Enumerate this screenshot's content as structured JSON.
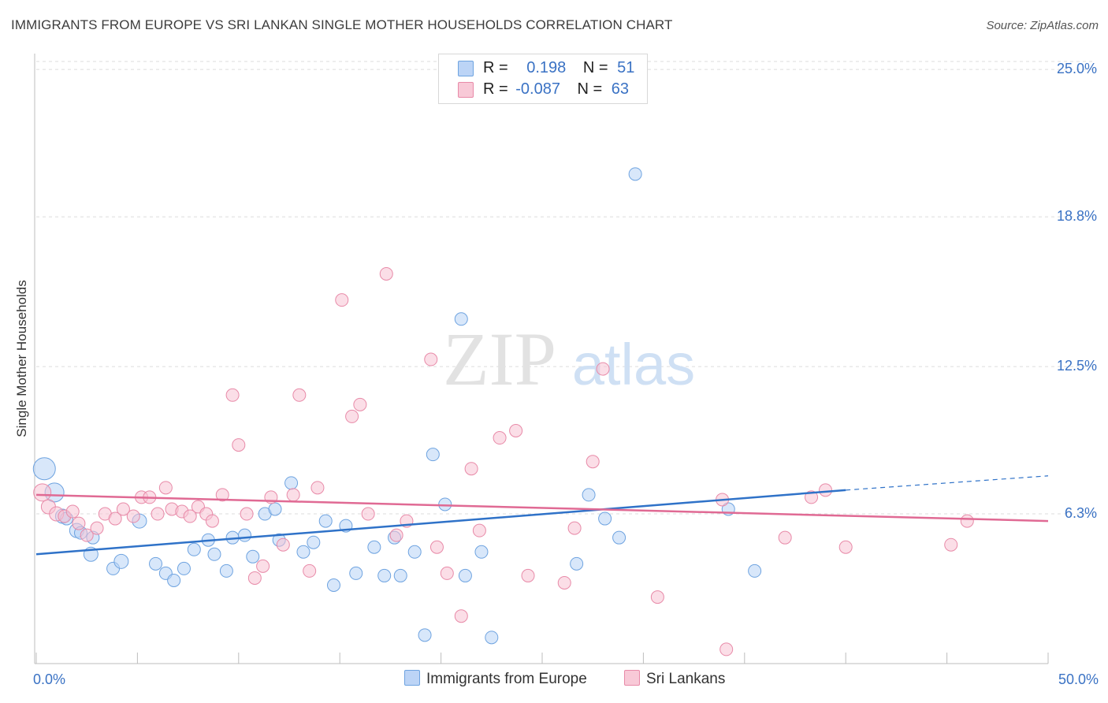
{
  "header": {
    "title": "IMMIGRANTS FROM EUROPE VS SRI LANKAN SINGLE MOTHER HOUSEHOLDS CORRELATION CHART",
    "source": "Source: ZipAtlas.com"
  },
  "watermark": {
    "zip": "ZIP",
    "atlas": "atlas"
  },
  "legend": {
    "rows": [
      {
        "r_label": "R =",
        "r_value": "0.198",
        "n_label": "N =",
        "n_value": "51",
        "color": "#a9c8f0"
      },
      {
        "r_label": "R =",
        "r_value": "-0.087",
        "n_label": "N =",
        "n_value": "63",
        "color": "#f4b8cb"
      }
    ]
  },
  "bottom_legend": {
    "series1": "Immigrants from Europe",
    "series2": "Sri Lankans"
  },
  "chart_data": {
    "type": "scatter",
    "title": "IMMIGRANTS FROM EUROPE VS SRI LANKAN SINGLE MOTHER HOUSEHOLDS CORRELATION CHART",
    "xlabel": "",
    "ylabel": "Single Mother Households",
    "xlim": [
      0,
      50
    ],
    "ylim": [
      0,
      26
    ],
    "x_tick_labels": [
      "0.0%",
      "50.0%"
    ],
    "y_ticks": [
      6.3,
      12.5,
      18.8,
      25.0
    ],
    "y_tick_labels": [
      "6.3%",
      "12.5%",
      "18.8%",
      "25.0%"
    ],
    "grid": "horizontal dashed",
    "legend_position": "top-center",
    "series": [
      {
        "name": "Immigrants from Europe",
        "color": "#6ea3e0",
        "fill": "#b8d3f5",
        "trend": {
          "x0": 0,
          "y0": 4.6,
          "x1": 40,
          "y1": 7.3,
          "dashed_to_x": 50,
          "dashed_to_y": 7.9
        },
        "points": [
          [
            0.4,
            8.2,
            14
          ],
          [
            0.9,
            7.2,
            12
          ],
          [
            1.3,
            6.2,
            9
          ],
          [
            1.5,
            6.1,
            8
          ],
          [
            2.0,
            5.6,
            9
          ],
          [
            2.2,
            5.5,
            8
          ],
          [
            2.8,
            5.3,
            8
          ],
          [
            2.7,
            4.6,
            9
          ],
          [
            3.8,
            4.0,
            8
          ],
          [
            4.2,
            4.3,
            9
          ],
          [
            5.1,
            6.0,
            9
          ],
          [
            5.9,
            4.2,
            8
          ],
          [
            6.4,
            3.8,
            8
          ],
          [
            6.8,
            3.5,
            8
          ],
          [
            7.3,
            4.0,
            8
          ],
          [
            7.8,
            4.8,
            8
          ],
          [
            8.5,
            5.2,
            8
          ],
          [
            8.8,
            4.6,
            8
          ],
          [
            9.4,
            3.9,
            8
          ],
          [
            9.7,
            5.3,
            8
          ],
          [
            10.3,
            5.4,
            8
          ],
          [
            10.7,
            4.5,
            8
          ],
          [
            11.3,
            6.3,
            8
          ],
          [
            11.8,
            6.5,
            8
          ],
          [
            12.0,
            5.2,
            8
          ],
          [
            12.6,
            7.6,
            8
          ],
          [
            13.2,
            4.7,
            8
          ],
          [
            13.7,
            5.1,
            8
          ],
          [
            14.3,
            6.0,
            8
          ],
          [
            14.7,
            3.3,
            8
          ],
          [
            15.3,
            5.8,
            8
          ],
          [
            15.8,
            3.8,
            8
          ],
          [
            16.7,
            4.9,
            8
          ],
          [
            17.2,
            3.7,
            8
          ],
          [
            17.7,
            5.3,
            8
          ],
          [
            18.0,
            3.7,
            8
          ],
          [
            18.7,
            4.7,
            8
          ],
          [
            19.2,
            1.2,
            8
          ],
          [
            19.6,
            8.8,
            8
          ],
          [
            20.2,
            6.7,
            8
          ],
          [
            21.0,
            14.5,
            8
          ],
          [
            21.2,
            3.7,
            8
          ],
          [
            22.0,
            4.7,
            8
          ],
          [
            22.5,
            1.1,
            8
          ],
          [
            26.7,
            4.2,
            8
          ],
          [
            27.3,
            7.1,
            8
          ],
          [
            28.1,
            6.1,
            8
          ],
          [
            28.8,
            5.3,
            8
          ],
          [
            29.6,
            20.6,
            8
          ],
          [
            34.2,
            6.5,
            8
          ],
          [
            35.5,
            3.9,
            8
          ]
        ]
      },
      {
        "name": "Sri Lankans",
        "color": "#e88aa8",
        "fill": "#f8c3d3",
        "trend": {
          "x0": 0,
          "y0": 7.1,
          "x1": 50,
          "y1": 6.0
        },
        "points": [
          [
            0.3,
            7.2,
            11
          ],
          [
            0.6,
            6.6,
            9
          ],
          [
            1.0,
            6.3,
            9
          ],
          [
            1.4,
            6.2,
            8
          ],
          [
            1.8,
            6.4,
            8
          ],
          [
            2.1,
            5.9,
            8
          ],
          [
            2.5,
            5.4,
            8
          ],
          [
            3.0,
            5.7,
            8
          ],
          [
            3.4,
            6.3,
            8
          ],
          [
            3.9,
            6.1,
            8
          ],
          [
            4.3,
            6.5,
            8
          ],
          [
            4.8,
            6.2,
            8
          ],
          [
            5.2,
            7.0,
            8
          ],
          [
            5.6,
            7.0,
            8
          ],
          [
            6.0,
            6.3,
            8
          ],
          [
            6.4,
            7.4,
            8
          ],
          [
            6.7,
            6.5,
            8
          ],
          [
            7.2,
            6.4,
            8
          ],
          [
            7.6,
            6.2,
            8
          ],
          [
            8.0,
            6.6,
            8
          ],
          [
            8.4,
            6.3,
            8
          ],
          [
            8.7,
            6.0,
            8
          ],
          [
            9.2,
            7.1,
            8
          ],
          [
            9.7,
            11.3,
            8
          ],
          [
            10.0,
            9.2,
            8
          ],
          [
            10.4,
            6.3,
            8
          ],
          [
            10.8,
            3.6,
            8
          ],
          [
            11.2,
            4.1,
            8
          ],
          [
            11.6,
            7.0,
            8
          ],
          [
            12.2,
            5.0,
            8
          ],
          [
            12.7,
            7.1,
            8
          ],
          [
            13.0,
            11.3,
            8
          ],
          [
            13.5,
            3.9,
            8
          ],
          [
            13.9,
            7.4,
            8
          ],
          [
            15.1,
            15.3,
            8
          ],
          [
            15.6,
            10.4,
            8
          ],
          [
            16.0,
            10.9,
            8
          ],
          [
            16.4,
            6.3,
            8
          ],
          [
            17.3,
            16.4,
            8
          ],
          [
            17.8,
            5.4,
            8
          ],
          [
            18.3,
            6.0,
            8
          ],
          [
            19.5,
            12.8,
            8
          ],
          [
            19.8,
            4.9,
            8
          ],
          [
            20.3,
            3.8,
            8
          ],
          [
            21.0,
            2.0,
            8
          ],
          [
            21.5,
            8.2,
            8
          ],
          [
            21.9,
            5.6,
            8
          ],
          [
            22.9,
            9.5,
            8
          ],
          [
            23.7,
            9.8,
            8
          ],
          [
            24.3,
            3.7,
            8
          ],
          [
            26.1,
            3.4,
            8
          ],
          [
            26.6,
            5.7,
            8
          ],
          [
            27.5,
            8.5,
            8
          ],
          [
            28.0,
            12.4,
            8
          ],
          [
            30.7,
            2.8,
            8
          ],
          [
            33.9,
            6.9,
            8
          ],
          [
            34.1,
            0.6,
            8
          ],
          [
            37.0,
            5.3,
            8
          ],
          [
            38.3,
            7.0,
            8
          ],
          [
            39.0,
            7.3,
            8
          ],
          [
            40.0,
            4.9,
            8
          ],
          [
            45.2,
            5.0,
            8
          ],
          [
            46.0,
            6.0,
            8
          ]
        ]
      }
    ]
  }
}
